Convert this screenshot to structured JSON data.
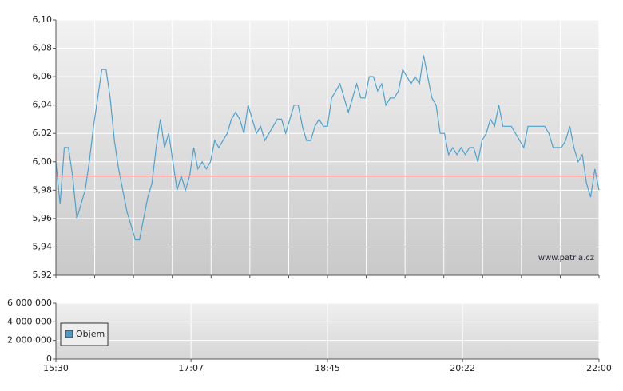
{
  "chart_data": [
    {
      "type": "line",
      "watermark": "www.patria.cz",
      "xlim": [
        "15:30",
        "22:00"
      ],
      "ylim": [
        5.92,
        6.1
      ],
      "yticks": [
        {
          "value": 5.92,
          "label": "5,92"
        },
        {
          "value": 5.94,
          "label": "5,94"
        },
        {
          "value": 5.96,
          "label": "5,96"
        },
        {
          "value": 5.98,
          "label": "5,98"
        },
        {
          "value": 6.0,
          "label": "6,00"
        },
        {
          "value": 6.02,
          "label": "6,02"
        },
        {
          "value": 6.04,
          "label": "6,04"
        },
        {
          "value": 6.06,
          "label": "6,06"
        },
        {
          "value": 6.08,
          "label": "6,08"
        },
        {
          "value": 6.1,
          "label": "6,10"
        }
      ],
      "grid": true,
      "reference_line": {
        "value": 5.99,
        "color": "#e06a6a"
      },
      "x": [
        "15:30",
        "15:33",
        "15:36",
        "15:39",
        "15:42",
        "15:45",
        "15:48",
        "15:51",
        "15:54",
        "15:57",
        "16:00",
        "16:03",
        "16:06",
        "16:09",
        "16:12",
        "16:15",
        "16:18",
        "16:21",
        "16:24",
        "16:27",
        "16:30",
        "16:33",
        "16:36",
        "16:39",
        "16:42",
        "16:45",
        "16:48",
        "16:51",
        "16:54",
        "16:57",
        "17:00",
        "17:03",
        "17:06",
        "17:09",
        "17:12",
        "17:15",
        "17:18",
        "17:21",
        "17:24",
        "17:27",
        "17:30",
        "17:33",
        "17:36",
        "17:39",
        "17:42",
        "17:45",
        "17:48",
        "17:51",
        "17:54",
        "17:57",
        "18:00",
        "18:03",
        "18:06",
        "18:09",
        "18:12",
        "18:15",
        "18:18",
        "18:21",
        "18:24",
        "18:27",
        "18:30",
        "18:33",
        "18:36",
        "18:39",
        "18:42",
        "18:45",
        "18:48",
        "18:51",
        "18:54",
        "18:57",
        "19:00",
        "19:03",
        "19:06",
        "19:09",
        "19:12",
        "19:15",
        "19:18",
        "19:21",
        "19:24",
        "19:27",
        "19:30",
        "19:33",
        "19:36",
        "19:39",
        "19:42",
        "19:45",
        "19:48",
        "19:51",
        "19:54",
        "19:57",
        "20:00",
        "20:03",
        "20:06",
        "20:09",
        "20:12",
        "20:15",
        "20:18",
        "20:21",
        "20:24",
        "20:27",
        "20:30",
        "20:33",
        "20:36",
        "20:39",
        "20:42",
        "20:45",
        "20:48",
        "20:51",
        "20:54",
        "20:57",
        "21:00",
        "21:03",
        "21:06",
        "21:09",
        "21:12",
        "21:15",
        "21:18",
        "21:21",
        "21:24",
        "21:27",
        "21:30",
        "21:33",
        "21:36",
        "21:39",
        "21:42",
        "21:45",
        "21:48",
        "21:51",
        "21:54",
        "21:57",
        "22:00"
      ],
      "series": [
        {
          "color": "#4aa3cf",
          "values": [
            6.0,
            5.97,
            6.01,
            6.01,
            5.99,
            5.96,
            5.97,
            5.98,
            6.0,
            6.025,
            6.045,
            6.065,
            6.065,
            6.045,
            6.015,
            5.995,
            5.98,
            5.965,
            5.955,
            5.945,
            5.945,
            5.96,
            5.975,
            5.985,
            6.01,
            6.03,
            6.01,
            6.02,
            6.0,
            5.98,
            5.99,
            5.98,
            5.99,
            6.01,
            5.995,
            6.0,
            5.995,
            6.0,
            6.015,
            6.01,
            6.015,
            6.02,
            6.03,
            6.035,
            6.03,
            6.02,
            6.04,
            6.03,
            6.02,
            6.025,
            6.015,
            6.02,
            6.025,
            6.03,
            6.03,
            6.02,
            6.03,
            6.04,
            6.04,
            6.025,
            6.015,
            6.015,
            6.025,
            6.03,
            6.025,
            6.025,
            6.045,
            6.05,
            6.055,
            6.045,
            6.035,
            6.045,
            6.055,
            6.045,
            6.045,
            6.06,
            6.06,
            6.05,
            6.055,
            6.04,
            6.045,
            6.045,
            6.05,
            6.065,
            6.06,
            6.055,
            6.06,
            6.055,
            6.075,
            6.06,
            6.045,
            6.04,
            6.02,
            6.02,
            6.005,
            6.01,
            6.005,
            6.01,
            6.005,
            6.01,
            6.01,
            6.0,
            6.015,
            6.02,
            6.03,
            6.025,
            6.04,
            6.025,
            6.025,
            6.025,
            6.02,
            6.015,
            6.01,
            6.025,
            6.025,
            6.025,
            6.025,
            6.025,
            6.02,
            6.01,
            6.01,
            6.01,
            6.015,
            6.025,
            6.01,
            6.0,
            6.005,
            5.985,
            5.975,
            5.995,
            5.98
          ]
        }
      ]
    },
    {
      "type": "bar",
      "xlim": [
        "15:30",
        "22:00"
      ],
      "xticks": [
        "15:30",
        "17:07",
        "18:45",
        "20:22",
        "22:00"
      ],
      "ylim": [
        0,
        6000000
      ],
      "yticks": [
        0,
        {
          "value": 2000000,
          "label": "2 000 000"
        },
        {
          "value": 4000000,
          "label": "4 000 000"
        },
        {
          "value": 6000000,
          "label": "6 000 000"
        }
      ],
      "grid": true,
      "series": [
        {
          "name": "Objem",
          "color": "#4a9cc8",
          "values": [
            0,
            0,
            0,
            0,
            0,
            0,
            0,
            0,
            0,
            0,
            0,
            0,
            0,
            0,
            0,
            0,
            0,
            0,
            0,
            0,
            0,
            0,
            0,
            0,
            0,
            0,
            0,
            0,
            0,
            0,
            0,
            0,
            0,
            0,
            0,
            0,
            0,
            0,
            0,
            0,
            0,
            0,
            0,
            0,
            0,
            0,
            0,
            0,
            0,
            0,
            0,
            0,
            0,
            0,
            0,
            0,
            0,
            0,
            0,
            0,
            0,
            0,
            0,
            0,
            0,
            0,
            0,
            0,
            0,
            0,
            0,
            0,
            0,
            0,
            0,
            0,
            0,
            0,
            0,
            0,
            0,
            0,
            0,
            0,
            0,
            0,
            0,
            0,
            0,
            0,
            0,
            0,
            0,
            0,
            0,
            0,
            0,
            0,
            0,
            0,
            0,
            0,
            0,
            0,
            0,
            0,
            0,
            0,
            0,
            0,
            0,
            0,
            0,
            0,
            0,
            0,
            0,
            0,
            0,
            0,
            0,
            0,
            0,
            0,
            0,
            0,
            0,
            0,
            0,
            0,
            0
          ]
        }
      ]
    }
  ]
}
